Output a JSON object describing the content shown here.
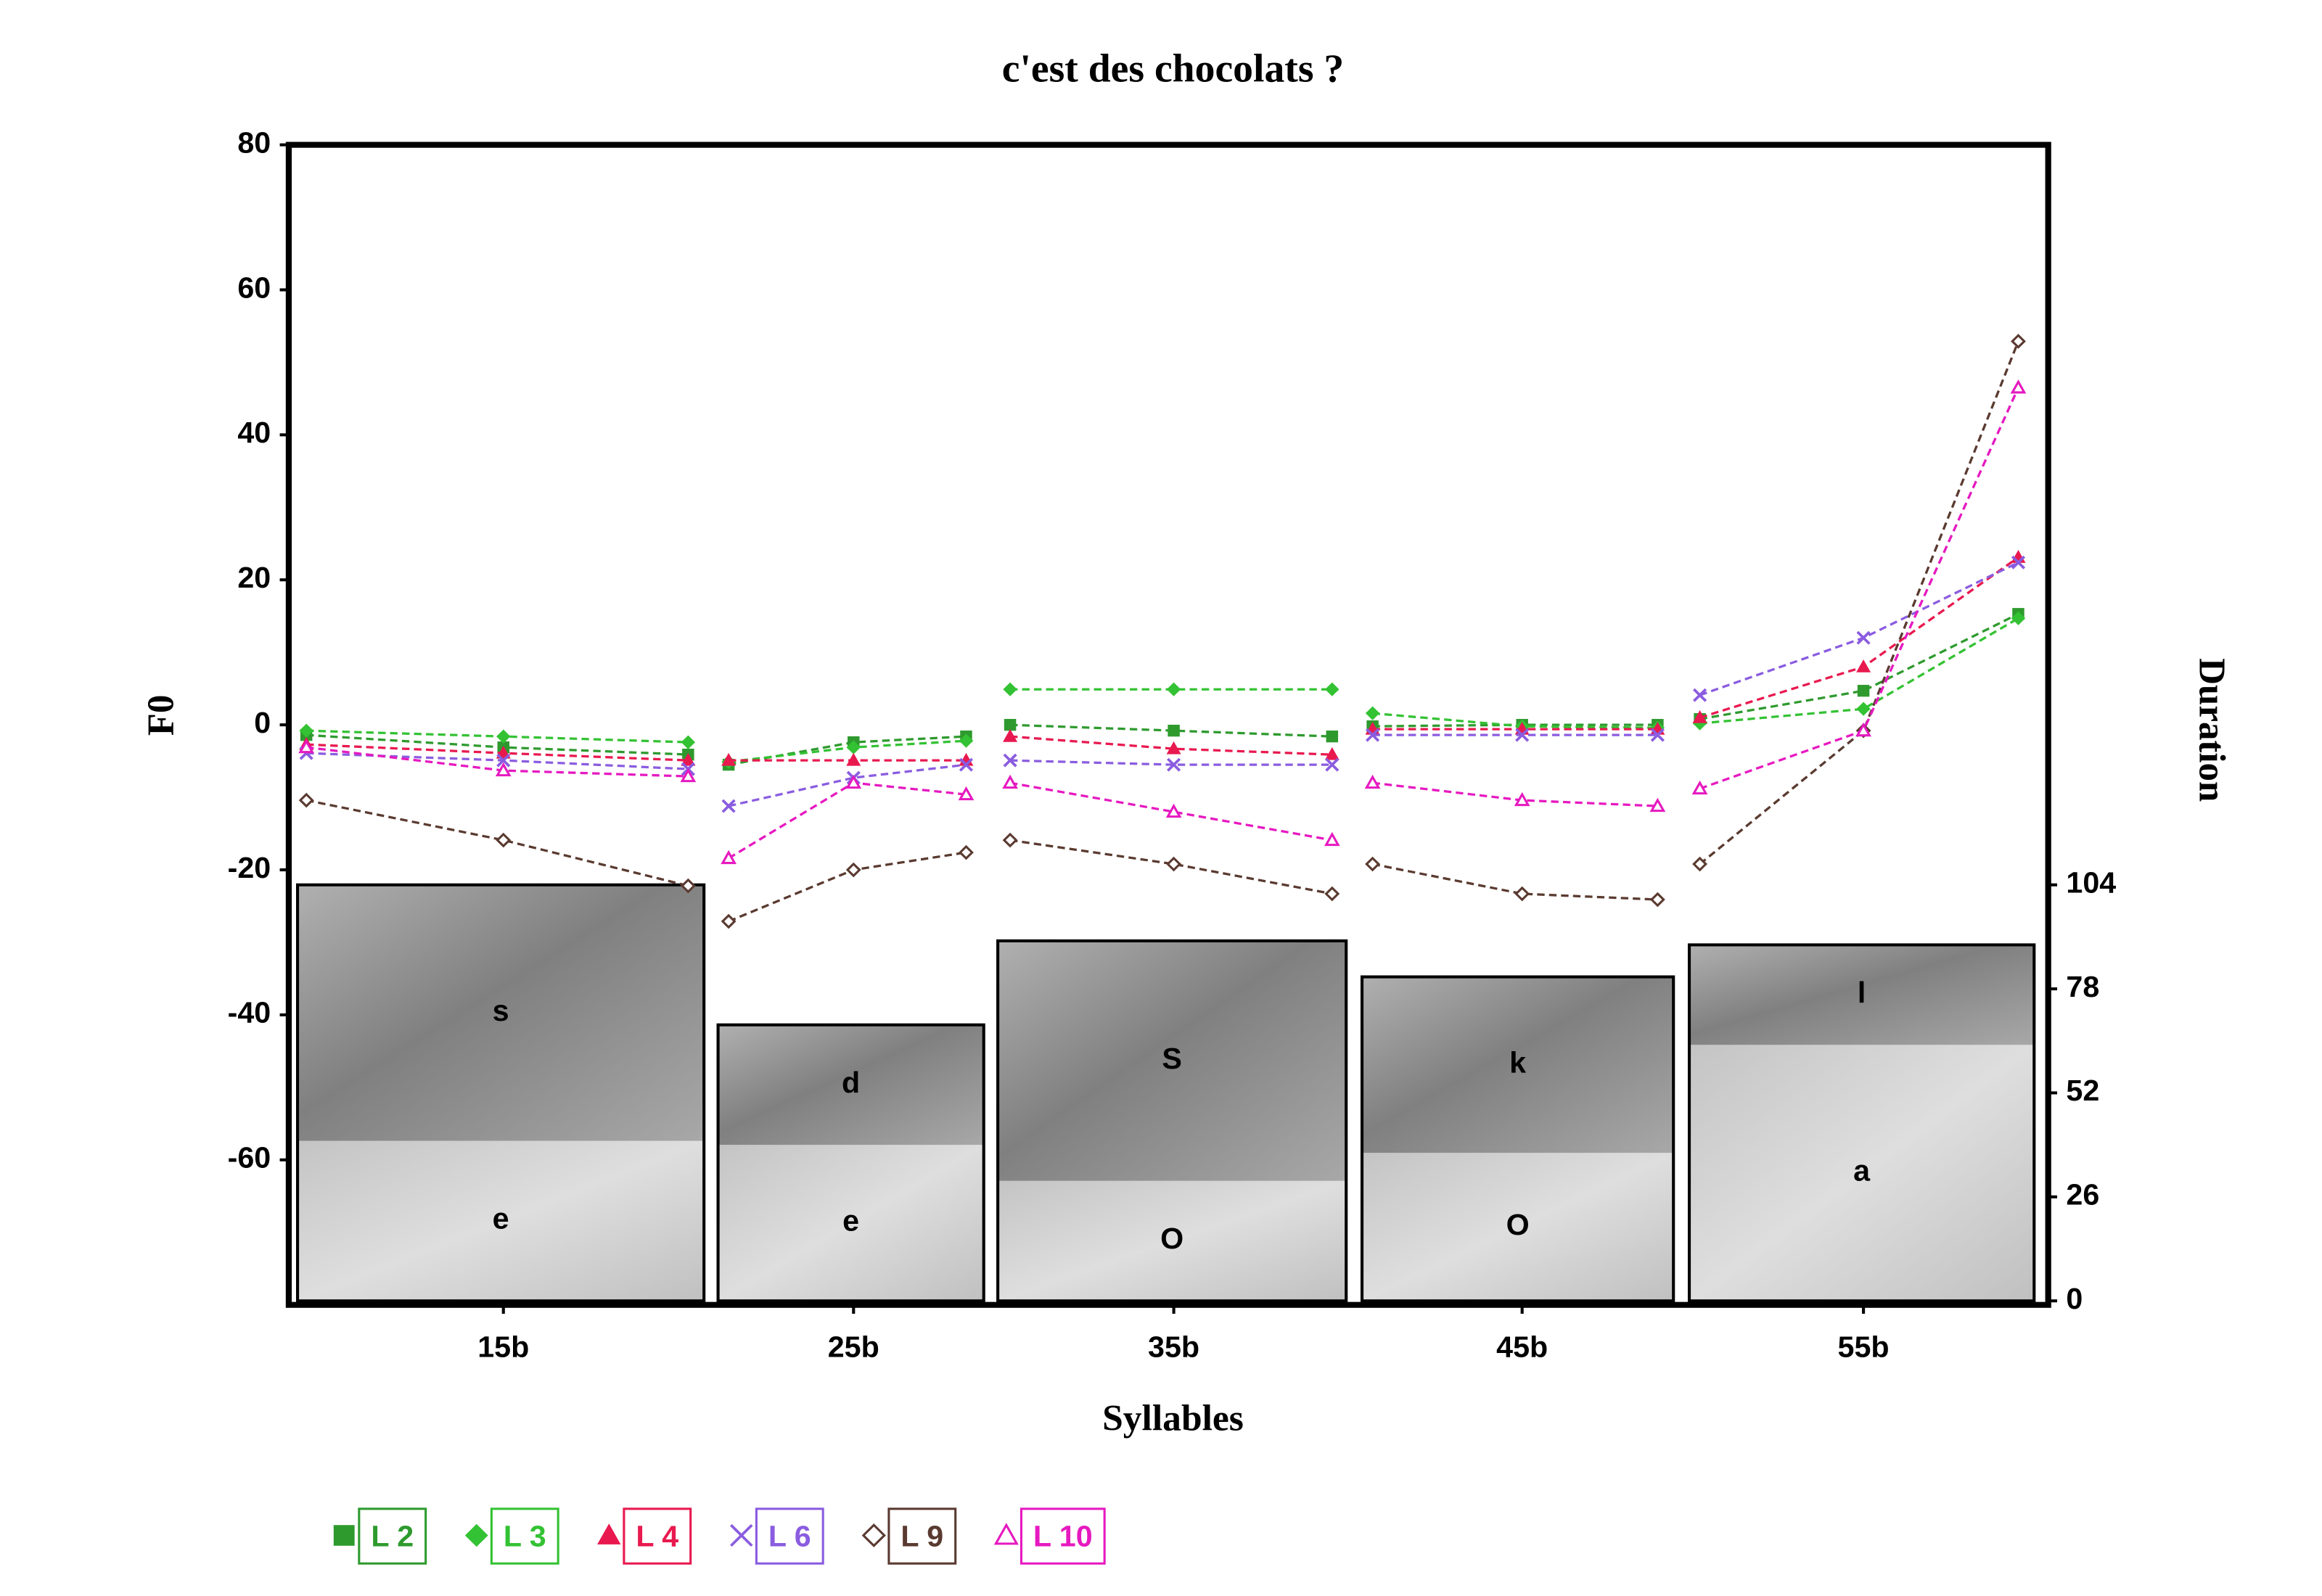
{
  "chart_data": {
    "type": "line",
    "title": "c'est des chocolats ?",
    "xlabel": "Syllables",
    "ylabel": "F0",
    "y2label": "Duration",
    "xlim": [
      0,
      100
    ],
    "xticks": [
      {
        "value": 12.2,
        "label": "15b"
      },
      {
        "value": 32.1,
        "label": "25b"
      },
      {
        "value": 50.3,
        "label": "35b"
      },
      {
        "value": 70.1,
        "label": "45b"
      },
      {
        "value": 89.5,
        "label": "55b"
      }
    ],
    "ylim": [
      -80,
      80
    ],
    "yticks": [
      -60,
      -40,
      -20,
      0,
      20,
      40,
      60,
      80
    ],
    "y2lim": [
      -1,
      289
    ],
    "y2ticks": [
      0,
      26,
      52,
      78,
      104
    ],
    "x": [
      1,
      12.2,
      22.7,
      null,
      25,
      32.1,
      38.5,
      null,
      41,
      50.3,
      59.3,
      null,
      61.6,
      70.1,
      77.8,
      null,
      80.2,
      89.5,
      98.3
    ],
    "series": [
      {
        "name": "L 2",
        "color": "#2e9a2e",
        "marker": "square",
        "values": [
          -1.4,
          -3.1,
          -4.1,
          null,
          -5.5,
          -2.4,
          -1.6,
          null,
          0,
          -0.8,
          -1.6,
          null,
          -0.2,
          0,
          0,
          null,
          0.8,
          4.7,
          15.3
        ]
      },
      {
        "name": "L 3",
        "color": "#33c233",
        "marker": "diamond",
        "values": [
          -0.8,
          -1.6,
          -2.4,
          null,
          -5.1,
          -3.1,
          -2.2,
          null,
          4.9,
          4.9,
          4.9,
          null,
          1.6,
          -0.2,
          -0.4,
          null,
          0.2,
          2.2,
          14.7
        ]
      },
      {
        "name": "L 4",
        "color": "#e8194f",
        "marker": "triangle",
        "values": [
          -2.7,
          -3.9,
          -4.9,
          null,
          -4.9,
          -4.9,
          -4.9,
          null,
          -1.6,
          -3.3,
          -4.1,
          null,
          -0.6,
          -0.6,
          -0.6,
          null,
          1.0,
          8.0,
          23.1
        ]
      },
      {
        "name": "L 6",
        "color": "#8a5ce0",
        "marker": "x",
        "values": [
          -3.9,
          -4.9,
          -6.1,
          null,
          -11.2,
          -7.3,
          -5.5,
          null,
          -4.9,
          -5.5,
          -5.5,
          null,
          -1.4,
          -1.4,
          -1.4,
          null,
          4.1,
          12.0,
          22.4
        ]
      },
      {
        "name": "L 9",
        "color": "#5a3a30",
        "marker": "diamond-open",
        "values": [
          -10.4,
          -15.9,
          -22.2,
          null,
          -27.1,
          -20.0,
          -17.6,
          null,
          -15.9,
          -19.2,
          -23.3,
          null,
          -19.2,
          -23.3,
          -24.1,
          null,
          -19.2,
          -0.8,
          52.9
        ]
      },
      {
        "name": "L 10",
        "color": "#e619c0",
        "marker": "triangle-open",
        "values": [
          -3.1,
          -6.3,
          -7.1,
          null,
          -18.4,
          -8.0,
          -9.6,
          null,
          -8.0,
          -12.0,
          -15.9,
          null,
          -8.0,
          -10.4,
          -11.2,
          null,
          -8.8,
          -0.8,
          46.5
        ]
      }
    ],
    "boxes": [
      {
        "xrange": [
          0.5,
          23.6
        ],
        "segments": [
          {
            "label": "e",
            "value": 40
          },
          {
            "label": "s",
            "value": 64
          }
        ]
      },
      {
        "xrange": [
          24.4,
          39.5
        ],
        "segments": [
          {
            "label": "e",
            "value": 39
          },
          {
            "label": "d",
            "value": 30
          }
        ]
      },
      {
        "xrange": [
          40.3,
          60.1
        ],
        "segments": [
          {
            "label": "O",
            "value": 30
          },
          {
            "label": "S",
            "value": 60
          }
        ]
      },
      {
        "xrange": [
          61.0,
          78.7
        ],
        "segments": [
          {
            "label": "O",
            "value": 37
          },
          {
            "label": "k",
            "value": 44
          }
        ]
      },
      {
        "xrange": [
          79.6,
          99.2
        ],
        "segments": [
          {
            "label": "a",
            "value": 64
          },
          {
            "label": "l",
            "value": 25
          }
        ]
      }
    ]
  }
}
